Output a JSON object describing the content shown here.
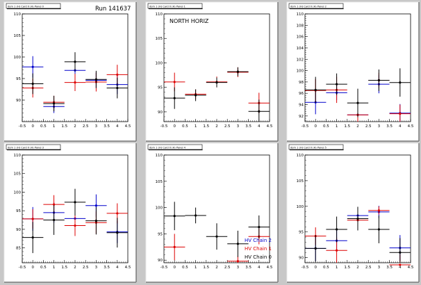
{
  "canvas_title": "Run 141637",
  "colors": {
    "chain2": "#0000cc",
    "chain1": "#dd0000",
    "chain0": "#000000",
    "pad_bg": "#ffffff",
    "canvas_bg": "#c8c8c8"
  },
  "chart_data": [
    {
      "type": "scatter",
      "pad_title": "dom 1 (H) Card 0 (H) Panel 0",
      "annotation": "",
      "ylim": [
        85,
        110
      ],
      "yticks": [
        90,
        95,
        100,
        105,
        110
      ],
      "xlim": [
        -0.5,
        4.5
      ],
      "xticks": [
        "-0.5",
        "0",
        "0.5",
        "1",
        "1.5",
        "2",
        "2.5",
        "3",
        "3.5",
        "4",
        "4.5"
      ],
      "series": [
        {
          "color": "chain2",
          "points": [
            {
              "x": 0,
              "y": 97.7,
              "ey": 2.5
            },
            {
              "x": 1,
              "y": 88.5,
              "ey": 1.5
            },
            {
              "x": 2,
              "y": 96.9,
              "ey": 2.3
            },
            {
              "x": 3,
              "y": 94.6,
              "ey": 1.8
            },
            {
              "x": 4,
              "y": 93.6,
              "ey": 2.2
            }
          ]
        },
        {
          "color": "chain1",
          "points": [
            {
              "x": 0,
              "y": 92.8,
              "ey": 2.2
            },
            {
              "x": 1,
              "y": 89.5,
              "ey": 1.5
            },
            {
              "x": 2,
              "y": 94.1,
              "ey": 2.0
            },
            {
              "x": 3,
              "y": 94.2,
              "ey": 2.2
            },
            {
              "x": 4,
              "y": 95.9,
              "ey": 2.3
            }
          ]
        },
        {
          "color": "chain0",
          "points": [
            {
              "x": 0,
              "y": 93.8,
              "ey": 2.4
            },
            {
              "x": 1,
              "y": 89.2,
              "ey": 1.8
            },
            {
              "x": 2,
              "y": 98.9,
              "ey": 2.2
            },
            {
              "x": 3,
              "y": 94.8,
              "ey": 2.0
            },
            {
              "x": 4,
              "y": 92.8,
              "ey": 2.4
            }
          ]
        }
      ]
    },
    {
      "type": "scatter",
      "pad_title": "dom 1 (H) Card 0 (H) Panel 1",
      "annotation": "NORTH HORIZ",
      "ylim": [
        88,
        110
      ],
      "yticks": [
        90,
        95,
        100,
        105,
        110
      ],
      "xlim": [
        -0.5,
        4.5
      ],
      "xticks": [
        "-0.5",
        "0",
        "0.5",
        "1",
        "1.5",
        "2",
        "2.5",
        "3",
        "3.5",
        "4",
        "4.5"
      ],
      "series": [
        {
          "color": "chain2",
          "points": []
        },
        {
          "color": "chain1",
          "points": [
            {
              "x": 0,
              "y": 96.1,
              "ey": 1.9
            },
            {
              "x": 1,
              "y": 93.6,
              "ey": 1.0
            },
            {
              "x": 2,
              "y": 96.1,
              "ey": 1.1
            },
            {
              "x": 3,
              "y": 98.1,
              "ey": 1.0
            },
            {
              "x": 4,
              "y": 91.8,
              "ey": 2.1
            }
          ]
        },
        {
          "color": "chain0",
          "points": [
            {
              "x": 0,
              "y": 92.8,
              "ey": 2.2
            },
            {
              "x": 1,
              "y": 93.4,
              "ey": 1.2
            },
            {
              "x": 2,
              "y": 96.0,
              "ey": 1.0
            },
            {
              "x": 3,
              "y": 98.2,
              "ey": 0.9
            },
            {
              "x": 4,
              "y": 90.1,
              "ey": 2.4
            }
          ]
        }
      ]
    },
    {
      "type": "scatter",
      "pad_title": "dom 1 (H) Card 0 (H) Panel 2",
      "annotation": "",
      "ylim": [
        91,
        110
      ],
      "yticks": [
        92,
        94,
        96,
        98,
        100,
        102,
        104,
        106,
        108,
        110
      ],
      "xlim": [
        -0.5,
        4.5
      ],
      "xticks": [
        "-0.5",
        "0",
        "0.5",
        "1",
        "1.5",
        "2",
        "2.5",
        "3",
        "3.5",
        "4",
        "4.5"
      ],
      "series": [
        {
          "color": "chain2",
          "points": [
            {
              "x": 0,
              "y": 94.4,
              "ey": 2.1
            },
            {
              "x": 1,
              "y": 96.1,
              "ey": 1.3
            },
            {
              "x": 2,
              "y": 92.2,
              "ey": 1.3
            },
            {
              "x": 3,
              "y": 97.6,
              "ey": 1.6
            },
            {
              "x": 4,
              "y": 92.5,
              "ey": 1.6
            }
          ]
        },
        {
          "color": "chain1",
          "points": [
            {
              "x": 0,
              "y": 96.5,
              "ey": 2.0
            },
            {
              "x": 1,
              "y": 96.6,
              "ey": 2.3
            },
            {
              "x": 2,
              "y": 92.2,
              "ey": 1.3
            },
            {
              "x": 3,
              "y": 98.3,
              "ey": 1.3
            },
            {
              "x": 4,
              "y": 92.4,
              "ey": 1.6
            }
          ]
        },
        {
          "color": "chain0",
          "points": [
            {
              "x": 0,
              "y": 96.6,
              "ey": 2.3
            },
            {
              "x": 1,
              "y": 97.6,
              "ey": 1.9
            },
            {
              "x": 2,
              "y": 94.3,
              "ey": 2.5
            },
            {
              "x": 3,
              "y": 98.3,
              "ey": 1.9
            },
            {
              "x": 4,
              "y": 97.9,
              "ey": 2.5
            }
          ]
        }
      ]
    },
    {
      "type": "scatter",
      "pad_title": "dom 1 (H) Card 0 (H) Panel 3",
      "annotation": "",
      "ylim": [
        81,
        110
      ],
      "yticks": [
        85,
        90,
        95,
        100,
        105,
        110
      ],
      "xlim": [
        -0.5,
        4.5
      ],
      "xticks": [
        "-0.5",
        "0",
        "0.5",
        "1",
        "1.5",
        "2",
        "2.5",
        "3",
        "3.5",
        "4",
        "4.5"
      ],
      "series": [
        {
          "color": "chain2",
          "points": [
            {
              "x": 0,
              "y": 92.8,
              "ey": 3.2
            },
            {
              "x": 1,
              "y": 94.5,
              "ey": 2.8
            },
            {
              "x": 2,
              "y": 92.9,
              "ey": 2.8
            },
            {
              "x": 3,
              "y": 96.4,
              "ey": 3.0
            },
            {
              "x": 4,
              "y": 89.3,
              "ey": 3.0
            }
          ]
        },
        {
          "color": "chain1",
          "points": [
            {
              "x": 0,
              "y": 92.8,
              "ey": 2.6
            },
            {
              "x": 1,
              "y": 96.7,
              "ey": 2.5
            },
            {
              "x": 2,
              "y": 91.0,
              "ey": 2.8
            },
            {
              "x": 3,
              "y": 91.8,
              "ey": 3.0
            },
            {
              "x": 4,
              "y": 94.3,
              "ey": 2.7
            }
          ]
        },
        {
          "color": "chain0",
          "points": [
            {
              "x": 0,
              "y": 87.8,
              "ey": 4.2
            },
            {
              "x": 1,
              "y": 92.5,
              "ey": 4.0
            },
            {
              "x": 2,
              "y": 97.3,
              "ey": 3.6
            },
            {
              "x": 3,
              "y": 92.3,
              "ey": 3.7
            },
            {
              "x": 4,
              "y": 89.1,
              "ey": 4.0
            }
          ]
        }
      ]
    },
    {
      "type": "scatter",
      "pad_title": "dom 1 (H) Card 0 (H) Panel 4",
      "annotation": "",
      "ylim": [
        89.5,
        110
      ],
      "yticks": [
        90,
        95,
        100,
        105,
        110
      ],
      "xlim": [
        -0.5,
        4.5
      ],
      "xticks": [
        "-0.5",
        "0",
        "0.5",
        "1",
        "1.5",
        "2",
        "2.5",
        "3",
        "3.5",
        "4",
        "4.5"
      ],
      "legend": [
        {
          "label": "HV Chain 2",
          "color": "chain2"
        },
        {
          "label": "HV Chain 1",
          "color": "chain1"
        },
        {
          "label": "HV Chain 0",
          "color": "chain0"
        }
      ],
      "series": [
        {
          "color": "chain2",
          "points": []
        },
        {
          "color": "chain1",
          "points": [
            {
              "x": 0,
              "y": 92.5,
              "ey": 2.5
            },
            {
              "x": 3,
              "y": 89.8,
              "ey": 1.0
            },
            {
              "x": 4,
              "y": 94.5,
              "ey": 1.5
            }
          ]
        },
        {
          "color": "chain0",
          "points": [
            {
              "x": 0,
              "y": 98.4,
              "ey": 2.7
            },
            {
              "x": 1,
              "y": 98.5,
              "ey": 1.5
            },
            {
              "x": 2,
              "y": 94.5,
              "ey": 2.5
            },
            {
              "x": 3,
              "y": 93.1,
              "ey": 2.5
            },
            {
              "x": 4,
              "y": 96.3,
              "ey": 2.2
            }
          ]
        }
      ]
    },
    {
      "type": "scatter",
      "pad_title": "dom 1 (H) Card 0 (H) Panel 5",
      "annotation": "",
      "ylim": [
        89,
        110
      ],
      "yticks": [
        90,
        95,
        100,
        105,
        110
      ],
      "xlim": [
        -0.5,
        4.5
      ],
      "xticks": [
        "-0.5",
        "0",
        "0.5",
        "1",
        "1.5",
        "2",
        "2.5",
        "3",
        "3.5",
        "4",
        "4.5"
      ],
      "series": [
        {
          "color": "chain2",
          "points": [
            {
              "x": 0,
              "y": 91.8,
              "ey": 2.5
            },
            {
              "x": 1,
              "y": 93.3,
              "ey": 2.0
            },
            {
              "x": 2,
              "y": 98.2,
              "ey": 1.3
            },
            {
              "x": 3,
              "y": 98.9,
              "ey": 1.2
            },
            {
              "x": 4,
              "y": 91.9,
              "ey": 2.5
            }
          ]
        },
        {
          "color": "chain1",
          "points": [
            {
              "x": 0,
              "y": 94.2,
              "ey": 1.7
            },
            {
              "x": 1,
              "y": 91.4,
              "ey": 2.5
            },
            {
              "x": 2,
              "y": 97.3,
              "ey": 1.5
            },
            {
              "x": 3,
              "y": 99.2,
              "ey": 0.8
            },
            {
              "x": 4,
              "y": 88.6,
              "ey": 2.0
            }
          ]
        },
        {
          "color": "chain0",
          "points": [
            {
              "x": 0,
              "y": 91.8,
              "ey": 2.6
            },
            {
              "x": 1,
              "y": 95.5,
              "ey": 2.5
            },
            {
              "x": 2,
              "y": 97.6,
              "ey": 2.3
            },
            {
              "x": 3,
              "y": 95.5,
              "ey": 2.7
            },
            {
              "x": 4,
              "y": 91.0,
              "ey": 2.8
            }
          ]
        }
      ]
    }
  ]
}
